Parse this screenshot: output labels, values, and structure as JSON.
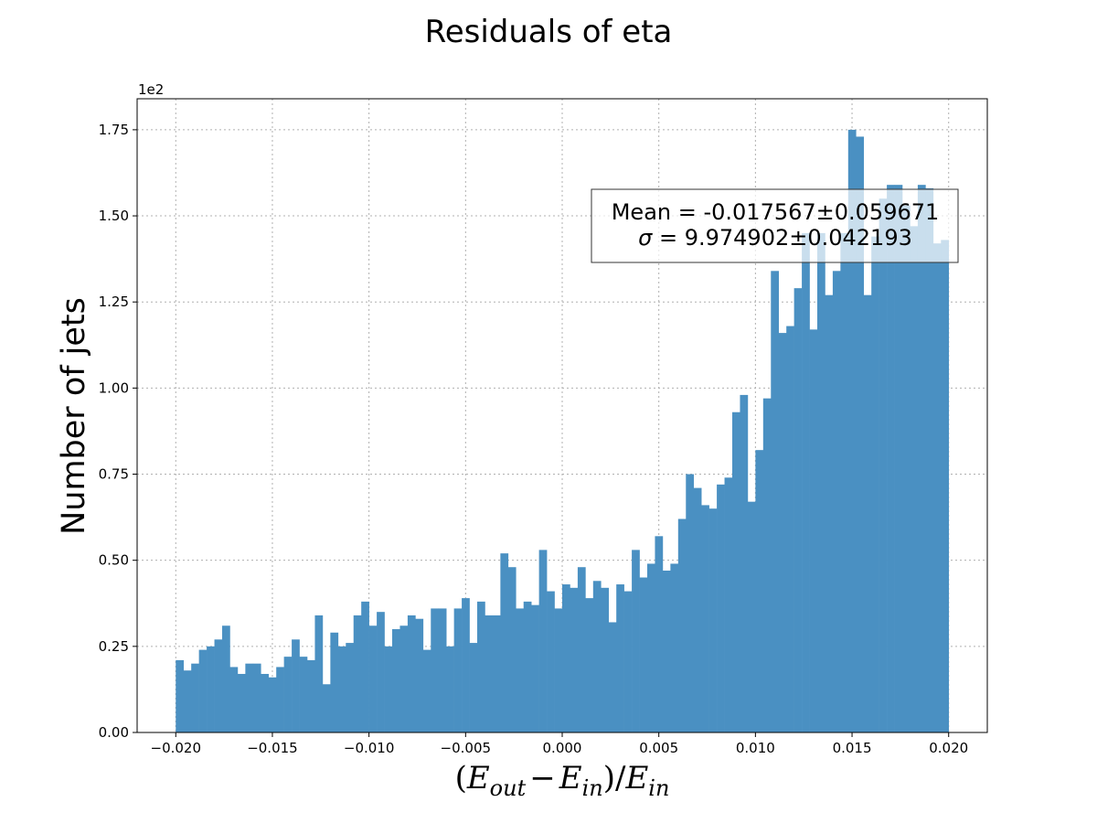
{
  "chart_data": {
    "type": "bar",
    "title": "Residuals of eta",
    "ylabel": "Number of jets",
    "xlabel_parts": {
      "open": "(",
      "E": "E",
      "sub_out": "out",
      "minus": "−",
      "sub_in": "in",
      "close": ")/",
      "E2": "E",
      "sub_in2": "in"
    },
    "y_offset_text": "1e2",
    "xlim": [
      -0.022,
      0.022
    ],
    "ylim": [
      0,
      1.84
    ],
    "y_scale_note": "values in units of 1e2",
    "xticks": [
      -0.02,
      -0.015,
      -0.01,
      -0.005,
      0.0,
      0.005,
      0.01,
      0.015,
      0.02
    ],
    "xtick_labels": [
      "−0.020",
      "−0.015",
      "−0.010",
      "−0.005",
      "0.000",
      "0.005",
      "0.010",
      "0.015",
      "0.020"
    ],
    "yticks": [
      0.0,
      0.25,
      0.5,
      0.75,
      1.0,
      1.25,
      1.5,
      1.75
    ],
    "ytick_labels": [
      "0.00",
      "0.25",
      "0.50",
      "0.75",
      "1.00",
      "1.25",
      "1.50",
      "1.75"
    ],
    "grid": true,
    "bar_color": "#4a90c2",
    "bin_start": -0.02,
    "bin_end": 0.02,
    "values": [
      0.21,
      0.18,
      0.2,
      0.24,
      0.25,
      0.27,
      0.31,
      0.19,
      0.17,
      0.2,
      0.2,
      0.17,
      0.16,
      0.19,
      0.22,
      0.27,
      0.22,
      0.21,
      0.34,
      0.14,
      0.29,
      0.25,
      0.26,
      0.34,
      0.38,
      0.31,
      0.35,
      0.25,
      0.3,
      0.31,
      0.34,
      0.33,
      0.24,
      0.36,
      0.36,
      0.25,
      0.36,
      0.39,
      0.26,
      0.38,
      0.34,
      0.34,
      0.52,
      0.48,
      0.36,
      0.38,
      0.37,
      0.53,
      0.41,
      0.36,
      0.43,
      0.42,
      0.48,
      0.39,
      0.44,
      0.42,
      0.32,
      0.43,
      0.41,
      0.53,
      0.45,
      0.49,
      0.57,
      0.47,
      0.49,
      0.62,
      0.75,
      0.71,
      0.66,
      0.65,
      0.72,
      0.74,
      0.93,
      0.98,
      0.67,
      0.82,
      0.97,
      1.34,
      1.16,
      1.18,
      1.29,
      1.45,
      1.17,
      1.45,
      1.27,
      1.34,
      1.45,
      1.75,
      1.73,
      1.27,
      1.44,
      1.55,
      1.59,
      1.59,
      1.53,
      1.47,
      1.59,
      1.58,
      1.42,
      1.43
    ],
    "stats_box": {
      "line1": "Mean = -0.017567±0.059671",
      "line2_symbol": "σ",
      "line2_rest": " = 9.974902±0.042193"
    }
  }
}
